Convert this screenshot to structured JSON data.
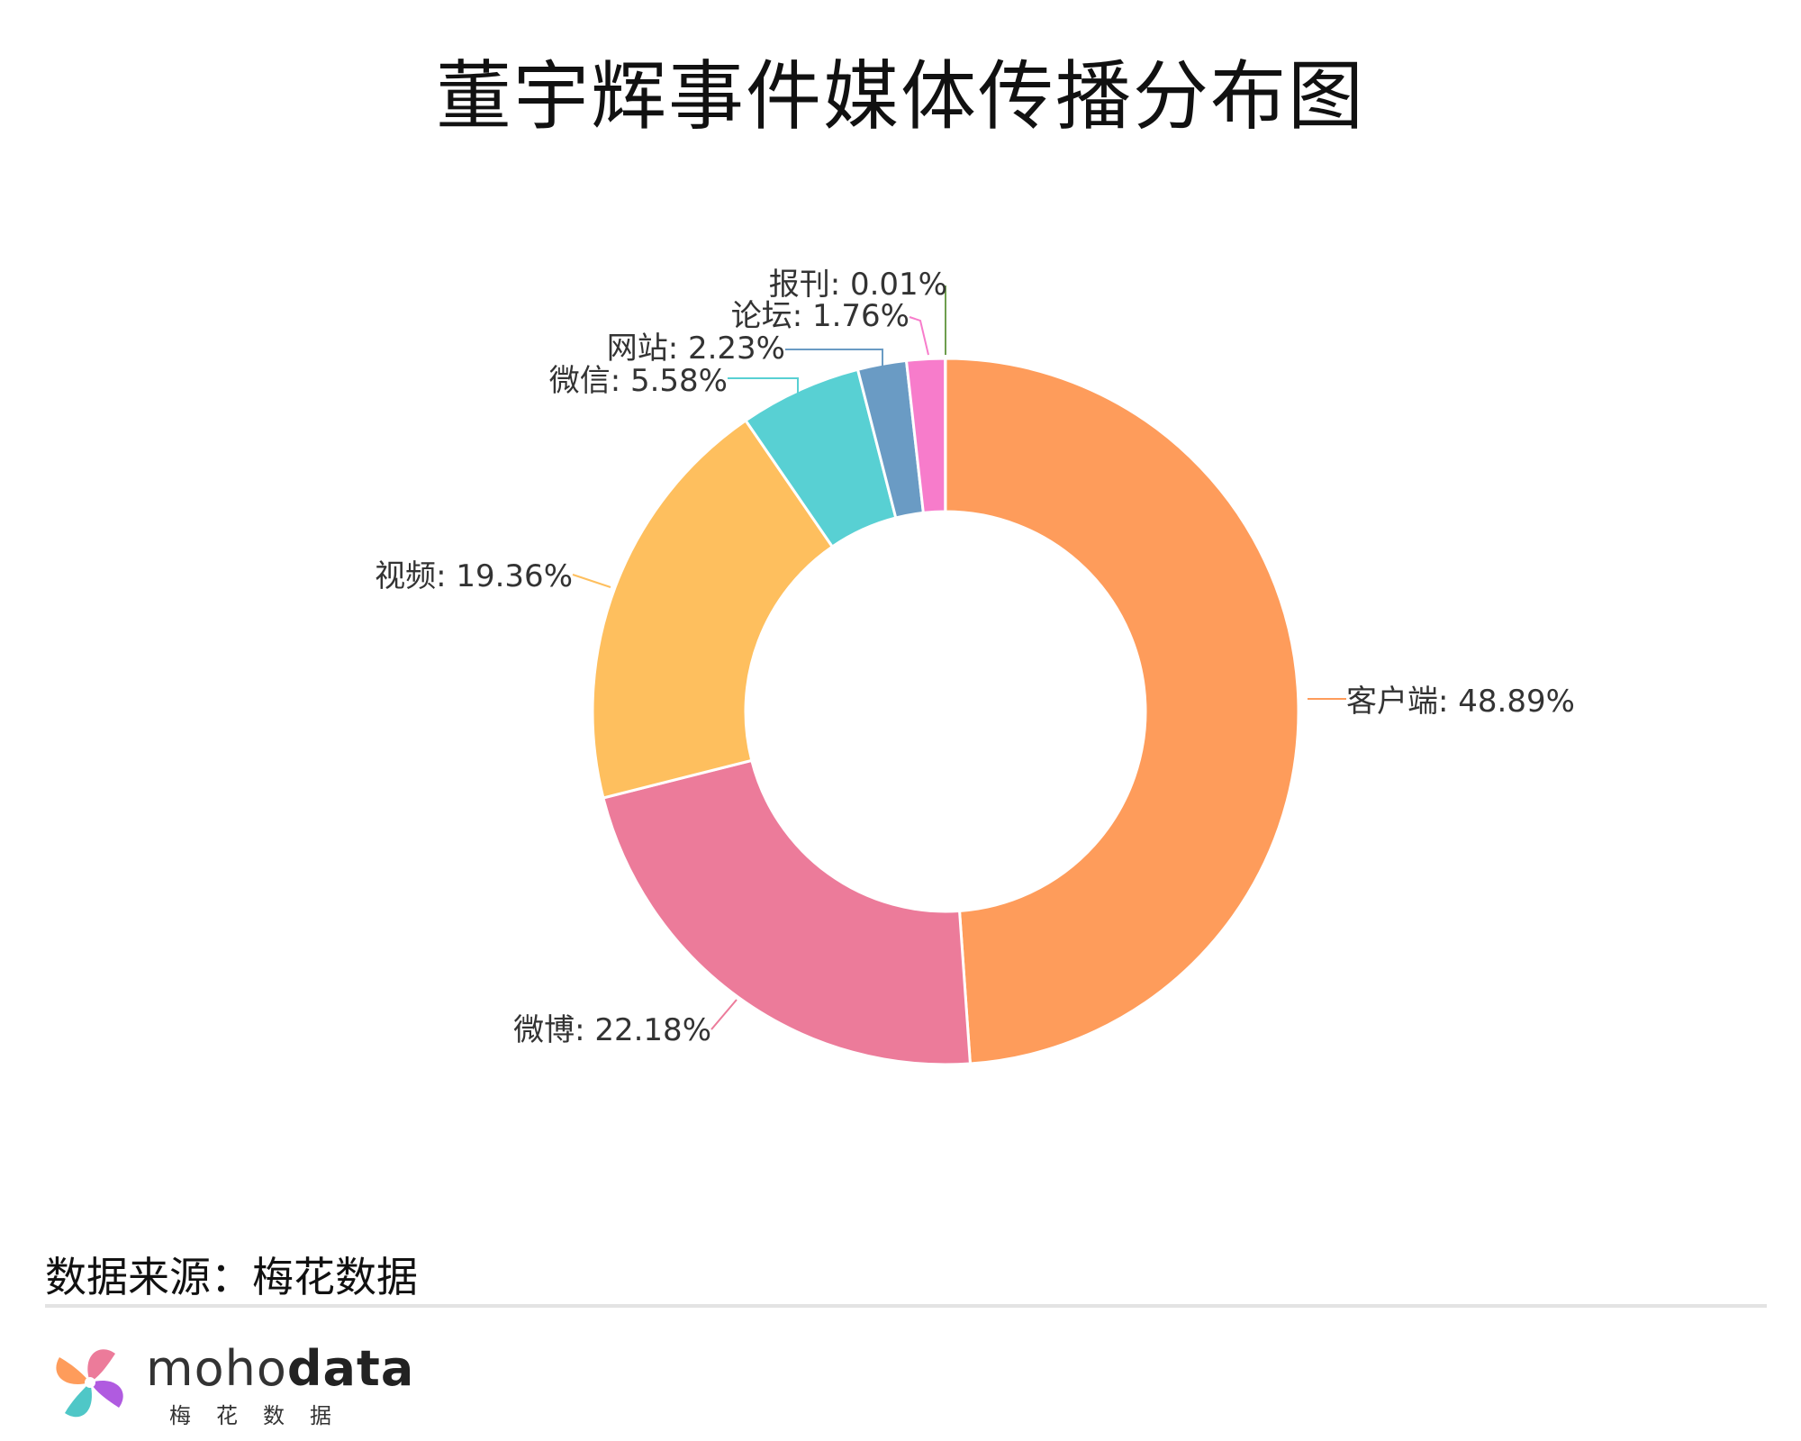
{
  "title": "董宇辉事件媒体传播分布图",
  "chart_data": {
    "type": "pie",
    "donut": true,
    "title": "董宇辉事件媒体传播分布图",
    "slices": [
      {
        "label": "客户端",
        "value": 48.89,
        "display": "客户端: 48.89%",
        "color": "#FE9C5B"
      },
      {
        "label": "微博",
        "value": 22.18,
        "display": "微博: 22.18%",
        "color": "#EC7B9A"
      },
      {
        "label": "视频",
        "value": 19.36,
        "display": "视频: 19.36%",
        "color": "#FEBF5E"
      },
      {
        "label": "微信",
        "value": 5.58,
        "display": "微信: 5.58%",
        "color": "#58D0D3"
      },
      {
        "label": "网站",
        "value": 2.23,
        "display": "网站: 2.23%",
        "color": "#6A9BC4"
      },
      {
        "label": "论坛",
        "value": 1.76,
        "display": "论坛: 1.76%",
        "color": "#F77CCB"
      },
      {
        "label": "报刊",
        "value": 0.01,
        "display": "报刊: 0.01%",
        "color": "#6E9E4E"
      }
    ]
  },
  "footer": {
    "source": "数据来源：梅花数据",
    "brand_light": "moho",
    "brand_bold": "data",
    "brand_cn": "梅花数据"
  }
}
